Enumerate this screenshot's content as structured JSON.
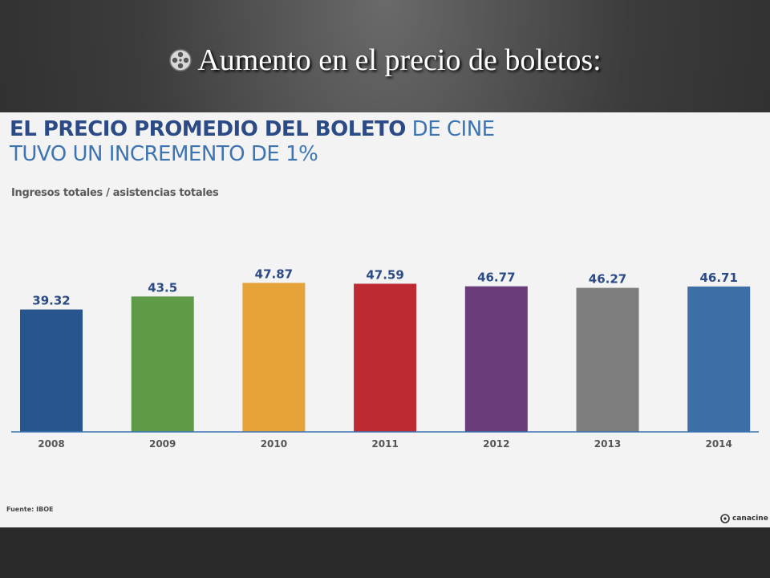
{
  "slide": {
    "title": "Aumento en el precio de boletos:",
    "bullet_icon": "film-reel-icon"
  },
  "heading": {
    "line1_bold": "EL PRECIO PROMEDIO DEL BOLETO",
    "line1_light": " DE CINE",
    "line2": "TUVO UN INCREMENTO DE 1%"
  },
  "subheading": "Ingresos totales / asistencias totales",
  "source": "Fuente: IBOE",
  "brand": "canacine",
  "colors": {
    "panel_bg": "#f3f3f3",
    "axis": "#3d74b2",
    "label_text": "#2b4a86",
    "tick_text": "#555555"
  },
  "chart_data": {
    "type": "bar",
    "categories": [
      "2008",
      "2009",
      "2010",
      "2011",
      "2012",
      "2013",
      "2014"
    ],
    "values": [
      39.32,
      43.5,
      47.87,
      47.59,
      46.77,
      46.27,
      46.71
    ],
    "value_labels": [
      "39.32",
      "43.5",
      "47.87",
      "47.59",
      "46.77",
      "46.27",
      "46.71"
    ],
    "colors": [
      "#27558e",
      "#5f9a49",
      "#e6a33a",
      "#bd2a32",
      "#6a3c79",
      "#7d7d7d",
      "#3d6ea6"
    ],
    "ylim": [
      0,
      49
    ],
    "grid": false,
    "legend": "none"
  }
}
